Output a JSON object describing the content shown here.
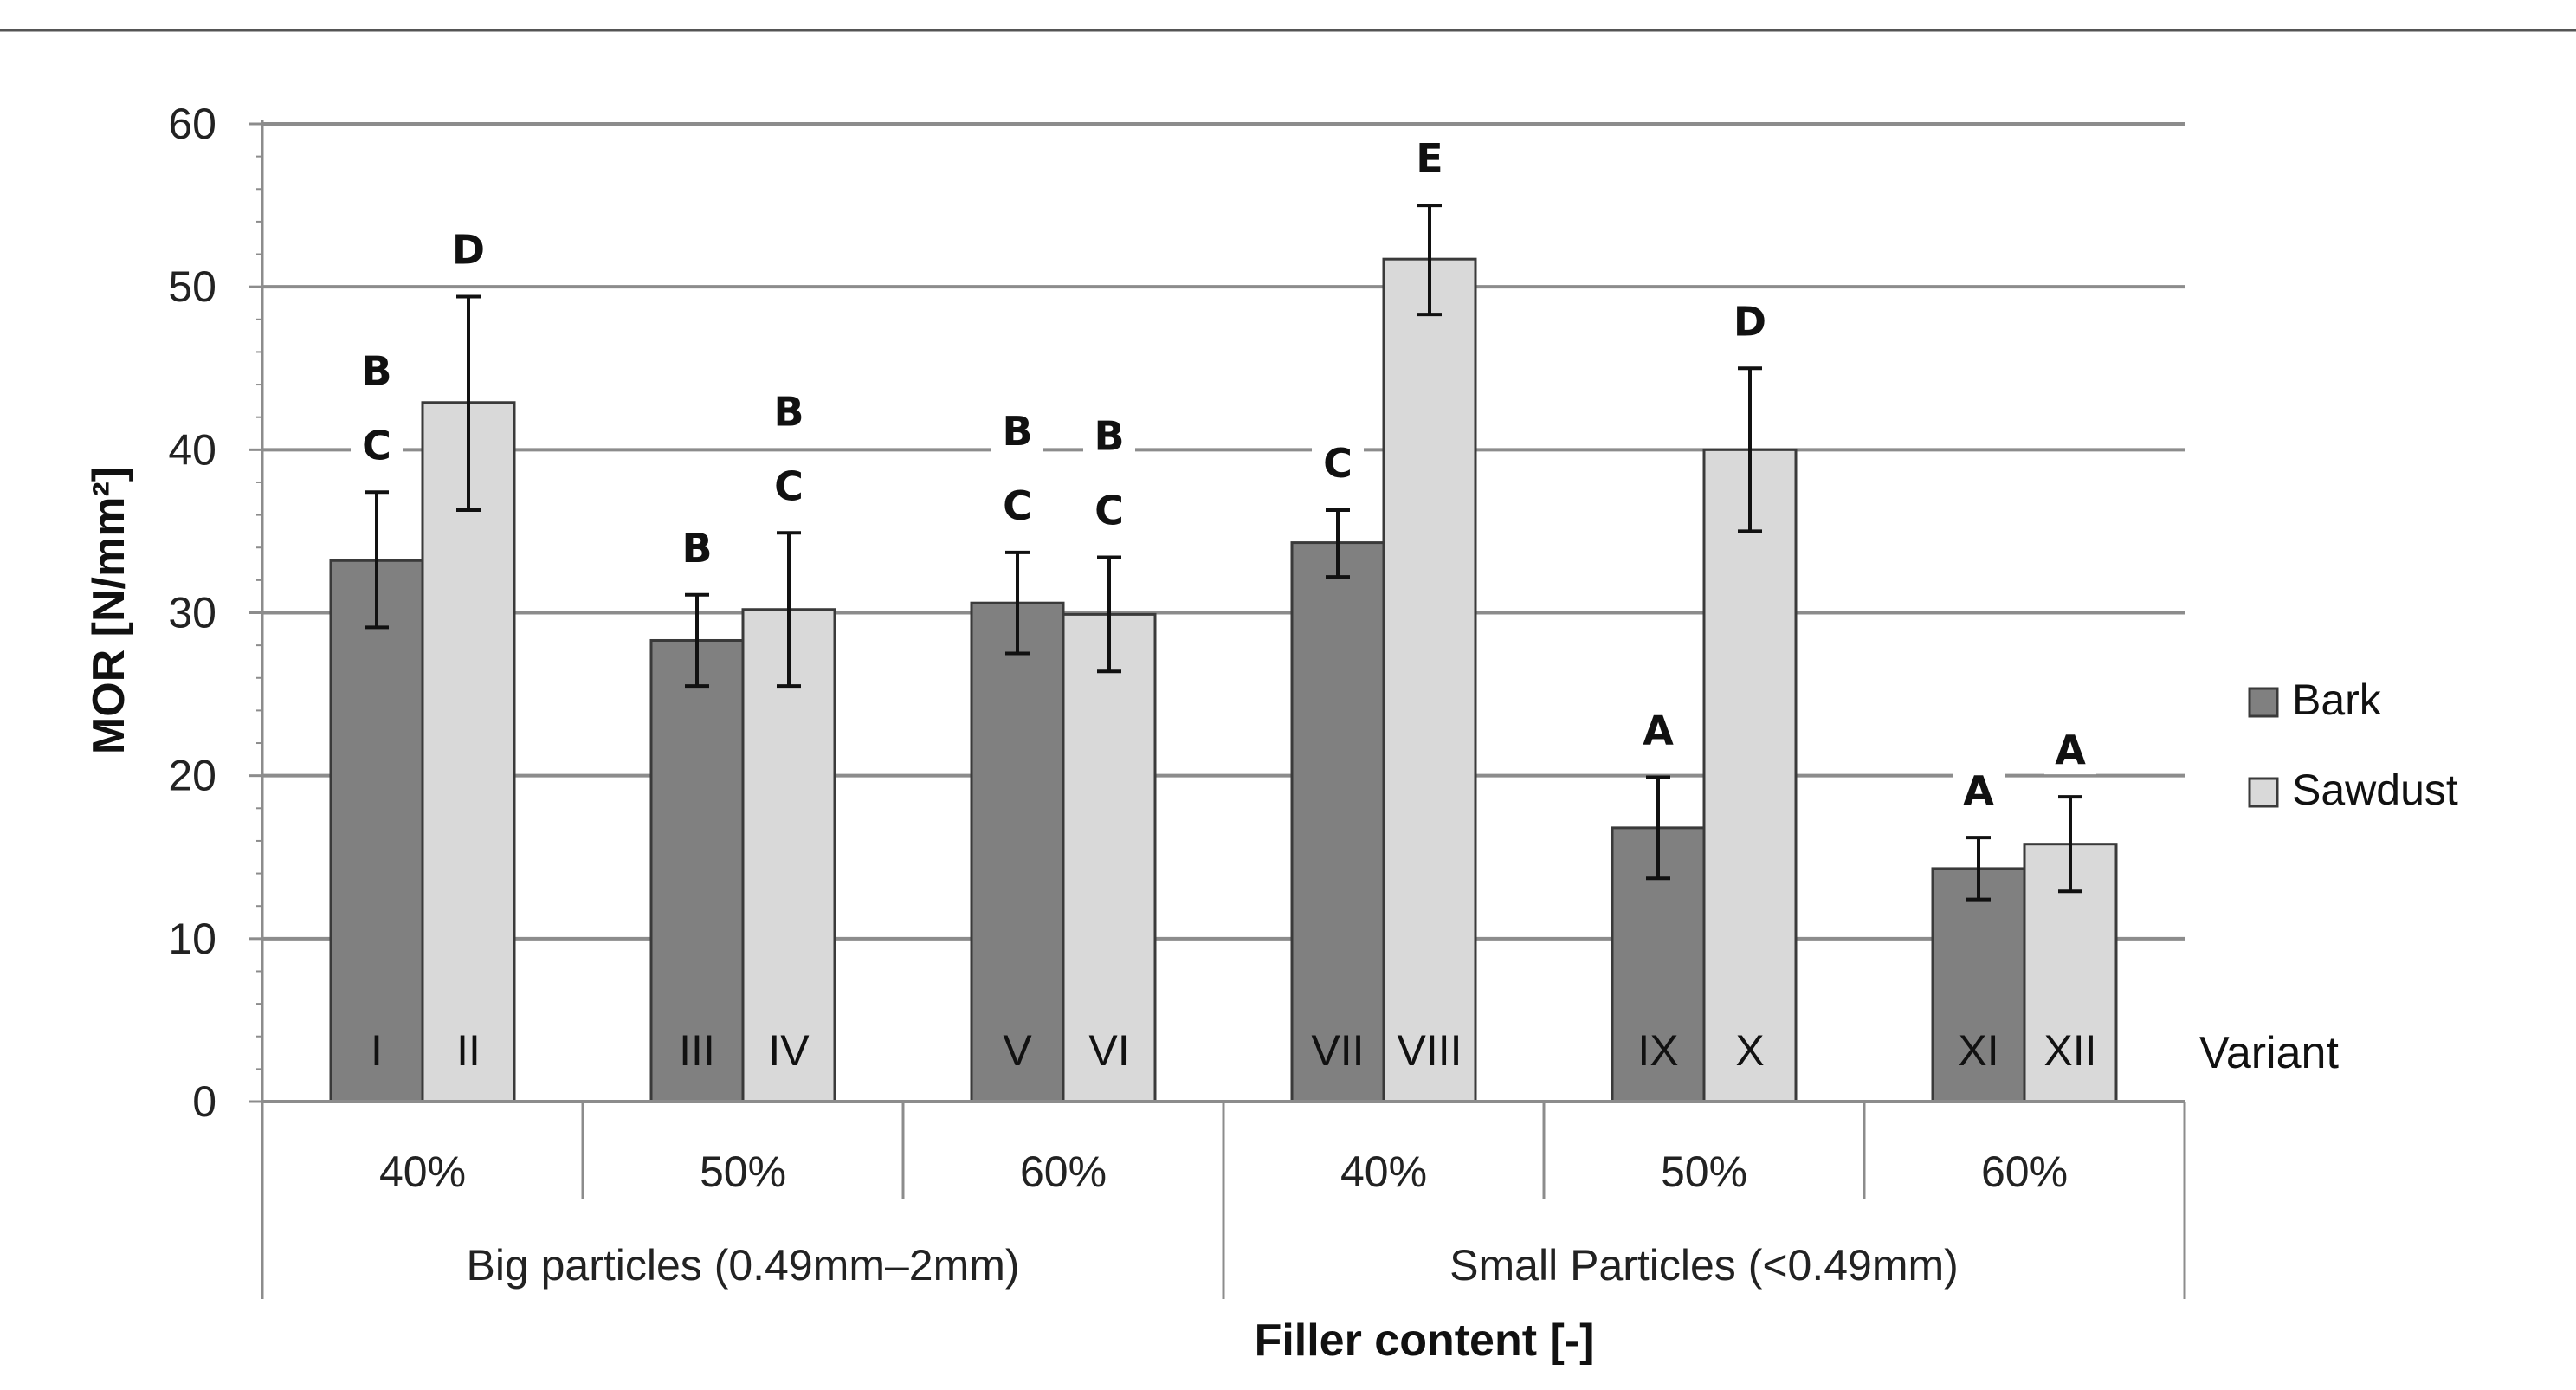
{
  "chart_data": {
    "type": "bar",
    "ylabel": "MOR [N/mm²]",
    "xlabel": "Filler content [-]",
    "ylim": [
      0,
      60
    ],
    "yticks": [
      0,
      10,
      20,
      30,
      40,
      50,
      60
    ],
    "grid": true,
    "legend_position": "right",
    "variant_label": "Variant",
    "categories": [
      "40%",
      "50%",
      "60%",
      "40%",
      "50%",
      "60%"
    ],
    "groups": [
      "Big particles (0.49mm–2mm)",
      "Small Particles (<0.49mm)"
    ],
    "series": [
      {
        "name": "Bark",
        "color": "#808080",
        "values": [
          33.2,
          28.3,
          30.6,
          34.3,
          16.8,
          14.3
        ],
        "error_low": [
          29.1,
          25.5,
          27.5,
          32.2,
          13.7,
          12.4
        ],
        "error_high": [
          37.4,
          31.1,
          33.7,
          36.3,
          19.9,
          16.2
        ],
        "variants": [
          "I",
          "III",
          "V",
          "VII",
          "IX",
          "XI"
        ],
        "significance": [
          [
            "B",
            "C"
          ],
          [
            "B"
          ],
          [
            "B",
            "C"
          ],
          [
            "C"
          ],
          [
            "A"
          ],
          [
            "A"
          ]
        ]
      },
      {
        "name": "Sawdust",
        "color": "#d9d9d9",
        "values": [
          42.9,
          30.2,
          29.9,
          51.7,
          40.0,
          15.8
        ],
        "error_low": [
          36.3,
          25.5,
          26.4,
          48.3,
          35.0,
          12.9
        ],
        "error_high": [
          49.4,
          34.9,
          33.4,
          55.0,
          45.0,
          18.7
        ],
        "variants": [
          "II",
          "IV",
          "VI",
          "VIII",
          "X",
          "XII"
        ],
        "significance": [
          [
            "D"
          ],
          [
            "B",
            "C"
          ],
          [
            "B",
            "C"
          ],
          [
            "E"
          ],
          [
            "D"
          ],
          [
            "A"
          ]
        ]
      }
    ]
  }
}
